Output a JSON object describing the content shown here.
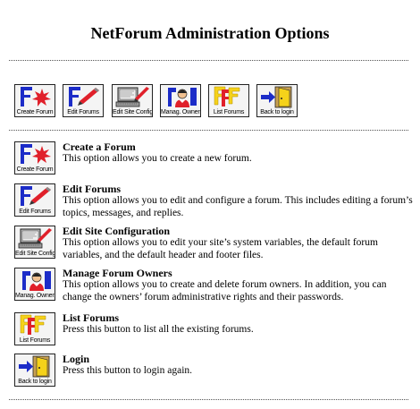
{
  "page": {
    "title": "NetForum Administration Options"
  },
  "buttons": {
    "create": {
      "caption": "Create Forum",
      "icon": "create-forum-icon"
    },
    "edit": {
      "caption": "Edit Forums",
      "icon": "edit-forums-icon"
    },
    "site": {
      "caption": "Edit Site Config",
      "icon": "edit-site-config-icon"
    },
    "owners": {
      "caption": "Manag. Owners",
      "icon": "manage-owners-icon"
    },
    "list": {
      "caption": "List Forums",
      "icon": "list-forums-icon"
    },
    "login": {
      "caption": "Back to login",
      "icon": "back-to-login-icon"
    }
  },
  "options": [
    {
      "title": "Create a Forum",
      "description": "This option allows you to create a new forum."
    },
    {
      "title": "Edit Forums",
      "description": "This option allows you to edit and configure a forum. This includes editing a forum’s topics, messages, and replies."
    },
    {
      "title": "Edit Site Configuration",
      "description": "This option allows you to edit your site’s system variables, the default forum variables, and the default header and footer files."
    },
    {
      "title": "Manage Forum Owners",
      "description": "This option allows you to create and delete forum owners. In addition, you can change the owners’ forum administrative rights and their passwords."
    },
    {
      "title": "List Forums",
      "description": "Press this button to list all the existing forums."
    },
    {
      "title": "Login",
      "description": "Press this button to login again."
    }
  ],
  "colors": {
    "accent_red": "#e0202a",
    "accent_blue": "#1c2cc8",
    "accent_yellow": "#f5d21a",
    "rule": "#555555"
  }
}
